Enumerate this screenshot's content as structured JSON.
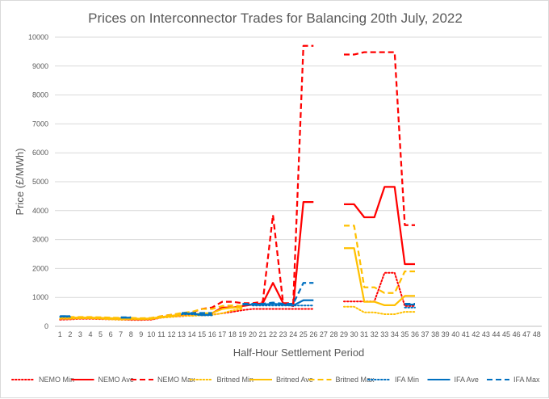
{
  "chart_data": {
    "type": "line",
    "title": "Prices on Interconnector Trades for Balancing 20th July, 2022",
    "xlabel": "Half-Hour Settlement Period",
    "ylabel": "Price (£/MWh)",
    "ylim": [
      0,
      10000
    ],
    "yticks": [
      0,
      1000,
      2000,
      3000,
      4000,
      5000,
      6000,
      7000,
      8000,
      9000,
      10000
    ],
    "grid": "horizontal",
    "legend_position": "bottom",
    "x": [
      "1",
      "2",
      "3",
      "4",
      "5",
      "6",
      "7",
      "8",
      "9",
      "10",
      "11",
      "12",
      "13",
      "14",
      "15",
      "16",
      "17",
      "18",
      "19",
      "20",
      "21",
      "22",
      "23",
      "24",
      "25",
      "26",
      "27",
      "28",
      "29",
      "30",
      "31",
      "32",
      "33",
      "34",
      "35",
      "36",
      "37",
      "38",
      "39",
      "40",
      "41",
      "42",
      "43",
      "44",
      "45",
      "46",
      "47",
      "48"
    ],
    "series": [
      {
        "name": "NEMO Min",
        "color": "#ff0000",
        "dash": "dot",
        "values": [
          230,
          240,
          260,
          260,
          250,
          240,
          230,
          220,
          220,
          230,
          300,
          330,
          350,
          380,
          380,
          400,
          450,
          500,
          560,
          600,
          600,
          600,
          600,
          600,
          600,
          600,
          null,
          null,
          860,
          860,
          860,
          860,
          1850,
          1850,
          700,
          700,
          null,
          null,
          null,
          null,
          null,
          null,
          null,
          null,
          null,
          null,
          null,
          null
        ]
      },
      {
        "name": "NEMO Ave",
        "color": "#ff0000",
        "dash": "solid",
        "values": [
          280,
          280,
          290,
          290,
          280,
          270,
          270,
          260,
          250,
          260,
          320,
          360,
          400,
          430,
          430,
          450,
          650,
          650,
          700,
          750,
          800,
          1500,
          800,
          700,
          4300,
          4300,
          null,
          null,
          4220,
          4220,
          3770,
          3770,
          4820,
          4820,
          2150,
          2150,
          null,
          null,
          null,
          null,
          null,
          null,
          null,
          null,
          null,
          null,
          null,
          null
        ]
      },
      {
        "name": "NEMO Max",
        "color": "#ff0000",
        "dash": "dash",
        "values": [
          300,
          300,
          310,
          310,
          300,
          290,
          290,
          280,
          270,
          280,
          350,
          400,
          450,
          480,
          600,
          650,
          850,
          850,
          800,
          800,
          850,
          3850,
          800,
          800,
          9700,
          9700,
          null,
          null,
          9400,
          9400,
          9480,
          9480,
          9480,
          9480,
          3500,
          3500,
          null,
          null,
          null,
          null,
          null,
          null,
          null,
          null,
          null,
          null,
          null,
          null
        ]
      },
      {
        "name": "Britned Min",
        "color": "#ffc000",
        "dash": "dot",
        "values": [
          260,
          260,
          270,
          270,
          260,
          240,
          230,
          240,
          240,
          250,
          300,
          320,
          360,
          360,
          380,
          400,
          450,
          550,
          600,
          null,
          null,
          null,
          null,
          null,
          null,
          null,
          null,
          null,
          680,
          680,
          480,
          480,
          420,
          420,
          500,
          500,
          null,
          null,
          null,
          null,
          null,
          null,
          null,
          null,
          null,
          null,
          null,
          null
        ]
      },
      {
        "name": "Britned Ave",
        "color": "#ffc000",
        "dash": "solid",
        "values": [
          300,
          300,
          300,
          300,
          290,
          280,
          270,
          270,
          260,
          270,
          320,
          360,
          420,
          420,
          440,
          460,
          600,
          650,
          650,
          null,
          null,
          null,
          null,
          null,
          null,
          null,
          null,
          null,
          2700,
          2700,
          850,
          850,
          730,
          730,
          1050,
          1050,
          null,
          null,
          null,
          null,
          null,
          null,
          null,
          null,
          null,
          null,
          null,
          null
        ]
      },
      {
        "name": "Britned Max",
        "color": "#ffc000",
        "dash": "dash",
        "values": [
          320,
          320,
          320,
          320,
          310,
          300,
          290,
          290,
          280,
          290,
          350,
          400,
          460,
          500,
          600,
          600,
          700,
          720,
          700,
          null,
          null,
          null,
          null,
          null,
          null,
          null,
          null,
          null,
          3480,
          3480,
          1350,
          1350,
          1150,
          1150,
          1900,
          1900,
          null,
          null,
          null,
          null,
          null,
          null,
          null,
          null,
          null,
          null,
          null,
          null
        ]
      },
      {
        "name": "IFA Min",
        "color": "#0070c0",
        "dash": "dot",
        "values": [
          330,
          330,
          null,
          null,
          null,
          null,
          null,
          null,
          null,
          null,
          null,
          null,
          420,
          420,
          380,
          380,
          null,
          null,
          null,
          720,
          720,
          720,
          720,
          720,
          720,
          720,
          null,
          null,
          null,
          null,
          null,
          null,
          null,
          null,
          650,
          650,
          null,
          null,
          null,
          null,
          null,
          null,
          null,
          null,
          null,
          null,
          null,
          null
        ]
      },
      {
        "name": "IFA Ave",
        "color": "#0070c0",
        "dash": "solid",
        "values": [
          350,
          350,
          null,
          null,
          null,
          null,
          300,
          300,
          null,
          null,
          null,
          null,
          440,
          440,
          400,
          400,
          null,
          null,
          750,
          750,
          750,
          780,
          750,
          720,
          900,
          900,
          null,
          null,
          null,
          null,
          null,
          null,
          null,
          null,
          750,
          750,
          null,
          null,
          null,
          null,
          null,
          null,
          null,
          null,
          null,
          null,
          null,
          null
        ]
      },
      {
        "name": "IFA Max",
        "color": "#0070c0",
        "dash": "dash",
        "values": [
          350,
          350,
          null,
          null,
          null,
          null,
          310,
          310,
          null,
          null,
          null,
          null,
          460,
          460,
          460,
          460,
          null,
          null,
          780,
          780,
          780,
          820,
          780,
          780,
          1500,
          1500,
          null,
          null,
          null,
          null,
          null,
          null,
          null,
          null,
          780,
          780,
          null,
          null,
          null,
          null,
          null,
          null,
          null,
          null,
          null,
          null,
          null,
          null
        ]
      }
    ]
  }
}
